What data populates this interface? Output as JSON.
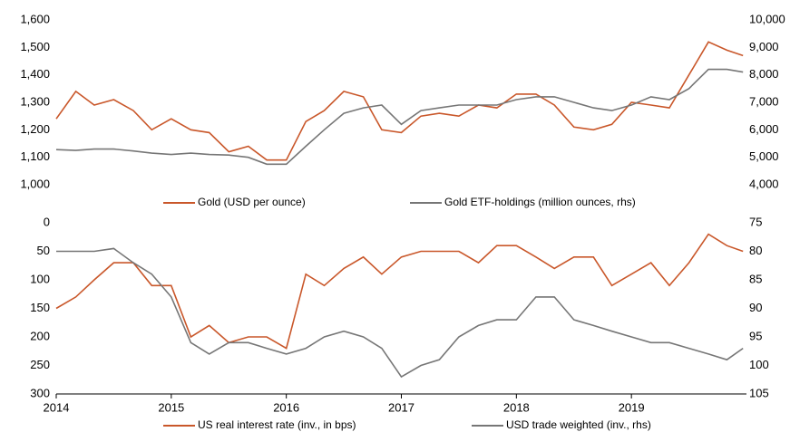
{
  "chart_data": [
    {
      "type": "line",
      "x": [
        2014.0,
        2014.17,
        2014.33,
        2014.5,
        2014.67,
        2014.83,
        2015.0,
        2015.17,
        2015.33,
        2015.5,
        2015.67,
        2015.83,
        2016.0,
        2016.17,
        2016.33,
        2016.5,
        2016.67,
        2016.83,
        2017.0,
        2017.17,
        2017.33,
        2017.5,
        2017.67,
        2017.83,
        2018.0,
        2018.17,
        2018.33,
        2018.5,
        2018.67,
        2018.83,
        2019.0,
        2019.17,
        2019.33,
        2019.5,
        2019.67,
        2019.83,
        2019.97
      ],
      "xlim": [
        2014,
        2020
      ],
      "series": [
        {
          "name": "Gold (USD per ounce)",
          "color": "#c9572a",
          "values": [
            1240,
            1340,
            1290,
            1310,
            1270,
            1200,
            1240,
            1200,
            1190,
            1120,
            1140,
            1090,
            1090,
            1230,
            1270,
            1340,
            1320,
            1200,
            1190,
            1250,
            1260,
            1250,
            1290,
            1280,
            1330,
            1330,
            1290,
            1210,
            1200,
            1220,
            1300,
            1290,
            1280,
            1400,
            1520,
            1490,
            1470
          ]
        },
        {
          "name": "Gold ETF-holdings (million ounces, rhs)",
          "color": "#767676",
          "axis": "y2",
          "values": [
            5280,
            5250,
            5300,
            5300,
            5230,
            5150,
            5100,
            5150,
            5100,
            5080,
            5000,
            4750,
            4750,
            5400,
            6000,
            6600,
            6800,
            6900,
            6200,
            6700,
            6800,
            6900,
            6900,
            6900,
            7100,
            7200,
            7200,
            7000,
            6800,
            6700,
            6900,
            7200,
            7100,
            7500,
            8200,
            8200,
            8100
          ]
        }
      ],
      "ylim": [
        1000,
        1600
      ],
      "yticks": [
        {
          "value": 1000,
          "label": "1,000"
        },
        {
          "value": 1100,
          "label": "1,100"
        },
        {
          "value": 1200,
          "label": "1,200"
        },
        {
          "value": 1300,
          "label": "1,300"
        },
        {
          "value": 1400,
          "label": "1,400"
        },
        {
          "value": 1500,
          "label": "1,500"
        },
        {
          "value": 1600,
          "label": "1,600"
        }
      ],
      "y2lim": [
        4000,
        10000
      ],
      "y2ticks": [
        {
          "value": 4000,
          "label": "4,000"
        },
        {
          "value": 5000,
          "label": "5,000"
        },
        {
          "value": 6000,
          "label": "6,000"
        },
        {
          "value": 7000,
          "label": "7,000"
        },
        {
          "value": 8000,
          "label": "8,000"
        },
        {
          "value": 9000,
          "label": "9,000"
        },
        {
          "value": 10000,
          "label": "10,000"
        }
      ]
    },
    {
      "type": "line",
      "x": [
        2014.0,
        2014.17,
        2014.33,
        2014.5,
        2014.67,
        2014.83,
        2015.0,
        2015.17,
        2015.33,
        2015.5,
        2015.67,
        2015.83,
        2016.0,
        2016.17,
        2016.33,
        2016.5,
        2016.67,
        2016.83,
        2017.0,
        2017.17,
        2017.33,
        2017.5,
        2017.67,
        2017.83,
        2018.0,
        2018.17,
        2018.33,
        2018.5,
        2018.67,
        2018.83,
        2019.0,
        2019.17,
        2019.33,
        2019.5,
        2019.67,
        2019.83,
        2019.97
      ],
      "xlim": [
        2014,
        2020
      ],
      "xticks": [
        2014,
        2015,
        2016,
        2017,
        2018,
        2019
      ],
      "series": [
        {
          "name": "US real interest rate (inv., in bps)",
          "color": "#c9572a",
          "values": [
            150,
            130,
            100,
            70,
            70,
            110,
            110,
            200,
            180,
            210,
            200,
            200,
            220,
            90,
            110,
            80,
            60,
            90,
            60,
            50,
            50,
            50,
            70,
            40,
            40,
            60,
            80,
            60,
            60,
            110,
            90,
            70,
            110,
            70,
            20,
            40,
            50
          ]
        },
        {
          "name": "USD trade weighted (inv., rhs)",
          "color": "#767676",
          "axis": "y2",
          "values": [
            80,
            80,
            80,
            79.5,
            82,
            84,
            88,
            96,
            98,
            96,
            96,
            97,
            98,
            97,
            95,
            94,
            95,
            97,
            102,
            100,
            99,
            95,
            93,
            92,
            92,
            88,
            88,
            92,
            93,
            94,
            95,
            96,
            96,
            97,
            98,
            99,
            97
          ]
        }
      ],
      "ylim": [
        0,
        300
      ],
      "inverted": true,
      "yticks": [
        0,
        50,
        100,
        150,
        200,
        250,
        300
      ],
      "y2lim": [
        75,
        105
      ],
      "y2ticks": [
        75,
        80,
        85,
        90,
        95,
        100,
        105
      ]
    }
  ]
}
